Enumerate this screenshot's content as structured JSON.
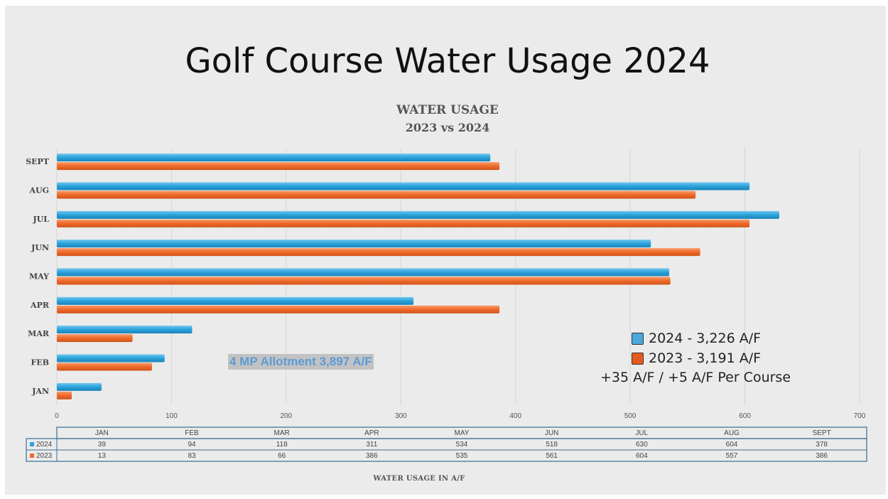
{
  "slide": {
    "title": "Golf Course Water Usage 2024",
    "annotation": "4 MP Allotment 3,897 A/F",
    "legend": [
      {
        "label": "2024 - 3,226 A/F",
        "color": "#4aa8dc"
      },
      {
        "label": "2023 - 3,191 A/F",
        "color": "#e55a1c"
      }
    ],
    "legend_note": "+35 A/F / +5 A/F Per Course"
  },
  "chart_data": {
    "type": "bar",
    "orientation": "horizontal",
    "title": "WATER USAGE",
    "subtitle": "2023 vs 2024",
    "xlabel": "WATER USAGE IN A/F",
    "ylabel": "",
    "xlim": [
      0,
      700
    ],
    "xticks": [
      "0",
      "100",
      "200",
      "300",
      "400",
      "500",
      "600",
      "700"
    ],
    "grid": true,
    "categories": [
      "JAN",
      "FEB",
      "MAR",
      "APR",
      "MAY",
      "JUN",
      "JUL",
      "AUG",
      "SEPT"
    ],
    "series": [
      {
        "name": "2024",
        "color": "#2aa2db",
        "values": [
          39,
          94,
          118,
          311,
          534,
          518,
          630,
          604,
          378
        ]
      },
      {
        "name": "2023",
        "color": "#f0692a",
        "values": [
          13,
          83,
          66,
          386,
          535,
          561,
          604,
          557,
          386
        ]
      }
    ],
    "table": true
  }
}
